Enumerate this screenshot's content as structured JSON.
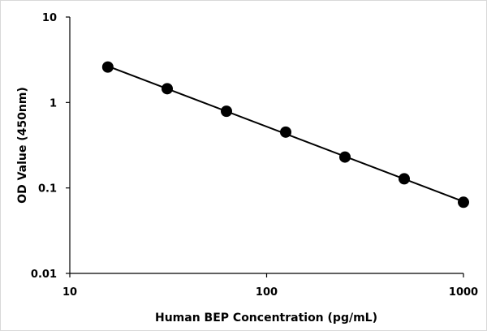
{
  "chart_data": {
    "type": "scatter",
    "title": "",
    "xlabel": "Human BEP Concentration  (pg/mL)",
    "ylabel": "OD Value (450nm)",
    "x_scale": "log",
    "y_scale": "log",
    "xlim": [
      10,
      1000
    ],
    "ylim": [
      0.01,
      10
    ],
    "x_ticks": [
      "10",
      "100",
      "1000"
    ],
    "y_ticks": [
      "10",
      "1",
      "0.1",
      "0.01"
    ],
    "grid": false,
    "legend": "none",
    "series": [
      {
        "x": [
          15.6,
          31.25,
          62.5,
          125,
          250,
          500,
          1000
        ],
        "y": [
          2.6,
          1.45,
          0.79,
          0.45,
          0.23,
          0.128,
          0.068
        ],
        "marker": "circle",
        "color": "#000000",
        "trendline": "power"
      }
    ]
  }
}
